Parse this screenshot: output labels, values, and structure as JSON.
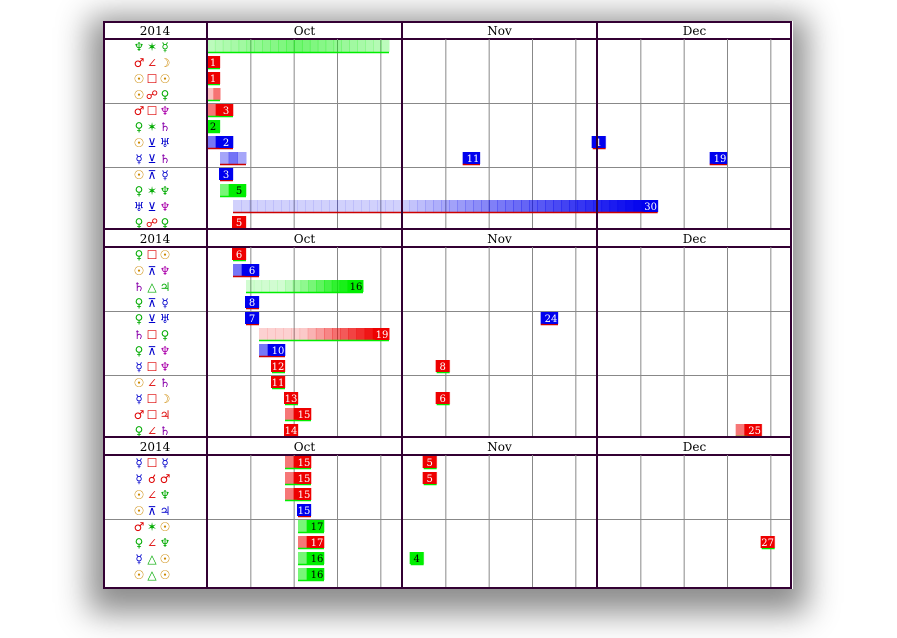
{
  "chart_data": {
    "type": "table",
    "months": [
      "Oct",
      "Nov",
      "Dec"
    ],
    "sections": [
      {
        "year": "2014",
        "rows": [
          {
            "glyphs": [
              {
                "g": "♆",
                "c": "#00aa00"
              },
              {
                "g": "✶",
                "c": "#00aa00"
              },
              {
                "g": "☿",
                "c": "#00aa00"
              }
            ],
            "events": [
              {
                "start": 0,
                "end": 42,
                "color": "green",
                "label": ""
              }
            ]
          },
          {
            "glyphs": [
              {
                "g": "♂",
                "c": "#dd0000"
              },
              {
                "g": "∠",
                "c": "#dd0000"
              },
              {
                "g": "☽",
                "c": "#cc8800"
              }
            ],
            "events": [
              {
                "start": 0,
                "end": 3,
                "color": "red",
                "label": "1"
              }
            ]
          },
          {
            "glyphs": [
              {
                "g": "☉",
                "c": "#cc8800"
              },
              {
                "g": "☐",
                "c": "#dd0000"
              },
              {
                "g": "☉",
                "c": "#cc8800"
              }
            ],
            "events": [
              {
                "start": 0,
                "end": 3,
                "color": "red",
                "label": "1"
              }
            ]
          },
          {
            "glyphs": [
              {
                "g": "☉",
                "c": "#cc8800"
              },
              {
                "g": "☍",
                "c": "#dd0000"
              },
              {
                "g": "♀",
                "c": "#00aa00"
              }
            ],
            "events": [
              {
                "start": 0,
                "end": 3,
                "color": "red",
                "label": ""
              }
            ]
          },
          {
            "glyphs": [
              {
                "g": "♂",
                "c": "#dd0000"
              },
              {
                "g": "☐",
                "c": "#dd0000"
              },
              {
                "g": "♆",
                "c": "#aa00aa"
              }
            ],
            "events": [
              {
                "start": 0,
                "end": 6,
                "color": "red",
                "label": "3"
              }
            ]
          },
          {
            "glyphs": [
              {
                "g": "♀",
                "c": "#00aa00"
              },
              {
                "g": "✶",
                "c": "#00aa00"
              },
              {
                "g": "♄",
                "c": "#8800aa"
              }
            ],
            "events": [
              {
                "start": 0,
                "end": 3,
                "color": "green",
                "label": "2"
              }
            ]
          },
          {
            "glyphs": [
              {
                "g": "☉",
                "c": "#cc8800"
              },
              {
                "g": "⊻",
                "c": "#0000cc"
              },
              {
                "g": "♅",
                "c": "#0000cc"
              }
            ],
            "events": [
              {
                "start": 0,
                "end": 6,
                "color": "blue",
                "label": "2"
              },
              {
                "start": 89,
                "end": 92,
                "color": "blue",
                "label": "1"
              }
            ]
          },
          {
            "glyphs": [
              {
                "g": "☿",
                "c": "#0000cc"
              },
              {
                "g": "⊻",
                "c": "#0000cc"
              },
              {
                "g": "♄",
                "c": "#8800aa"
              }
            ],
            "events": [
              {
                "start": 3,
                "end": 9,
                "color": "blue",
                "label": ""
              },
              {
                "start": 59,
                "end": 63,
                "color": "blue",
                "label": "11"
              },
              {
                "start": 116,
                "end": 120,
                "color": "blue",
                "label": "19"
              }
            ]
          },
          {
            "glyphs": [
              {
                "g": "☉",
                "c": "#cc8800"
              },
              {
                "g": "⊼",
                "c": "#0000cc"
              },
              {
                "g": "☿",
                "c": "#0000cc"
              }
            ],
            "events": [
              {
                "start": 3,
                "end": 6,
                "color": "blue",
                "label": "3"
              }
            ]
          },
          {
            "glyphs": [
              {
                "g": "♀",
                "c": "#00aa00"
              },
              {
                "g": "✶",
                "c": "#00aa00"
              },
              {
                "g": "♆",
                "c": "#00aa00"
              }
            ],
            "events": [
              {
                "start": 3,
                "end": 9,
                "color": "green",
                "label": "5"
              }
            ]
          },
          {
            "glyphs": [
              {
                "g": "♅",
                "c": "#0000cc"
              },
              {
                "g": "⊻",
                "c": "#0000cc"
              },
              {
                "g": "♆",
                "c": "#aa00aa"
              }
            ],
            "events": [
              {
                "start": 6,
                "end": 104,
                "color": "blue",
                "label": "30"
              }
            ]
          },
          {
            "glyphs": [
              {
                "g": "♀",
                "c": "#00aa00"
              },
              {
                "g": "☍",
                "c": "#dd0000"
              },
              {
                "g": "♀",
                "c": "#00aa00"
              }
            ],
            "events": [
              {
                "start": 6,
                "end": 9,
                "color": "red",
                "label": "5"
              }
            ]
          }
        ]
      },
      {
        "year": "2014",
        "rows": [
          {
            "glyphs": [
              {
                "g": "♀",
                "c": "#00aa00"
              },
              {
                "g": "☐",
                "c": "#dd0000"
              },
              {
                "g": "☉",
                "c": "#cc8800"
              }
            ],
            "events": [
              {
                "start": 6,
                "end": 9,
                "color": "red",
                "label": "6"
              }
            ]
          },
          {
            "glyphs": [
              {
                "g": "☉",
                "c": "#cc8800"
              },
              {
                "g": "⊼",
                "c": "#0000cc"
              },
              {
                "g": "♆",
                "c": "#aa00aa"
              }
            ],
            "events": [
              {
                "start": 6,
                "end": 12,
                "color": "blue",
                "label": "6"
              }
            ]
          },
          {
            "glyphs": [
              {
                "g": "♄",
                "c": "#8800aa"
              },
              {
                "g": "△",
                "c": "#00aa00"
              },
              {
                "g": "♃",
                "c": "#00aa00"
              }
            ],
            "events": [
              {
                "start": 9,
                "end": 36,
                "color": "green",
                "label": "16"
              }
            ]
          },
          {
            "glyphs": [
              {
                "g": "♀",
                "c": "#00aa00"
              },
              {
                "g": "⊼",
                "c": "#0000cc"
              },
              {
                "g": "☿",
                "c": "#0000cc"
              }
            ],
            "events": [
              {
                "start": 9,
                "end": 12,
                "color": "blue",
                "label": "8"
              }
            ]
          },
          {
            "glyphs": [
              {
                "g": "♀",
                "c": "#00aa00"
              },
              {
                "g": "⊻",
                "c": "#0000cc"
              },
              {
                "g": "♅",
                "c": "#0000cc"
              }
            ],
            "events": [
              {
                "start": 9,
                "end": 12,
                "color": "blue",
                "label": "7"
              },
              {
                "start": 77,
                "end": 81,
                "color": "blue",
                "label": "24"
              }
            ]
          },
          {
            "glyphs": [
              {
                "g": "♄",
                "c": "#8800aa"
              },
              {
                "g": "☐",
                "c": "#dd0000"
              },
              {
                "g": "♀",
                "c": "#00aa00"
              }
            ],
            "events": [
              {
                "start": 12,
                "end": 42,
                "color": "red",
                "label": "19"
              }
            ]
          },
          {
            "glyphs": [
              {
                "g": "♀",
                "c": "#00aa00"
              },
              {
                "g": "⊼",
                "c": "#0000cc"
              },
              {
                "g": "♆",
                "c": "#aa00aa"
              }
            ],
            "events": [
              {
                "start": 12,
                "end": 18,
                "color": "blue",
                "label": "10"
              }
            ]
          },
          {
            "glyphs": [
              {
                "g": "☿",
                "c": "#0000cc"
              },
              {
                "g": "☐",
                "c": "#dd0000"
              },
              {
                "g": "♆",
                "c": "#aa00aa"
              }
            ],
            "events": [
              {
                "start": 15,
                "end": 18,
                "color": "red",
                "label": "12"
              },
              {
                "start": 53,
                "end": 56,
                "color": "red",
                "label": "8"
              }
            ]
          },
          {
            "glyphs": [
              {
                "g": "☉",
                "c": "#cc8800"
              },
              {
                "g": "∠",
                "c": "#dd0000"
              },
              {
                "g": "♄",
                "c": "#8800aa"
              }
            ],
            "events": [
              {
                "start": 15,
                "end": 18,
                "color": "red",
                "label": "11"
              }
            ]
          },
          {
            "glyphs": [
              {
                "g": "☿",
                "c": "#0000cc"
              },
              {
                "g": "☐",
                "c": "#dd0000"
              },
              {
                "g": "☽",
                "c": "#cc8800"
              }
            ],
            "events": [
              {
                "start": 18,
                "end": 21,
                "color": "red",
                "label": "13"
              },
              {
                "start": 53,
                "end": 56,
                "color": "red",
                "label": "6"
              }
            ]
          },
          {
            "glyphs": [
              {
                "g": "♂",
                "c": "#dd0000"
              },
              {
                "g": "☐",
                "c": "#dd0000"
              },
              {
                "g": "♃",
                "c": "#dd0000"
              }
            ],
            "events": [
              {
                "start": 18,
                "end": 24,
                "color": "red",
                "label": "15"
              }
            ]
          },
          {
            "glyphs": [
              {
                "g": "♀",
                "c": "#00aa00"
              },
              {
                "g": "∠",
                "c": "#dd0000"
              },
              {
                "g": "♄",
                "c": "#8800aa"
              }
            ],
            "events": [
              {
                "start": 18,
                "end": 21,
                "color": "red",
                "label": "14"
              },
              {
                "start": 122,
                "end": 128,
                "color": "red",
                "label": "25"
              }
            ]
          }
        ]
      },
      {
        "year": "2014",
        "rows": [
          {
            "glyphs": [
              {
                "g": "☿",
                "c": "#0000cc"
              },
              {
                "g": "☐",
                "c": "#dd0000"
              },
              {
                "g": "☿",
                "c": "#0000cc"
              }
            ],
            "events": [
              {
                "start": 18,
                "end": 24,
                "color": "red",
                "label": "15"
              },
              {
                "start": 50,
                "end": 53,
                "color": "red",
                "label": "5"
              }
            ]
          },
          {
            "glyphs": [
              {
                "g": "☿",
                "c": "#0000cc"
              },
              {
                "g": "☌",
                "c": "#dd0000"
              },
              {
                "g": "♂",
                "c": "#dd0000"
              }
            ],
            "events": [
              {
                "start": 18,
                "end": 24,
                "color": "red",
                "label": "15"
              },
              {
                "start": 50,
                "end": 53,
                "color": "red",
                "label": "5"
              }
            ]
          },
          {
            "glyphs": [
              {
                "g": "☉",
                "c": "#cc8800"
              },
              {
                "g": "∠",
                "c": "#dd0000"
              },
              {
                "g": "♆",
                "c": "#00aa00"
              }
            ],
            "events": [
              {
                "start": 18,
                "end": 24,
                "color": "red",
                "label": "15"
              }
            ]
          },
          {
            "glyphs": [
              {
                "g": "☉",
                "c": "#cc8800"
              },
              {
                "g": "⊼",
                "c": "#0000cc"
              },
              {
                "g": "♃",
                "c": "#0000cc"
              }
            ],
            "events": [
              {
                "start": 21,
                "end": 24,
                "color": "blue",
                "label": "15"
              }
            ]
          },
          {
            "glyphs": [
              {
                "g": "♂",
                "c": "#dd0000"
              },
              {
                "g": "✶",
                "c": "#00aa00"
              },
              {
                "g": "☉",
                "c": "#cc8800"
              }
            ],
            "events": [
              {
                "start": 21,
                "end": 27,
                "color": "green",
                "label": "17"
              }
            ]
          },
          {
            "glyphs": [
              {
                "g": "♀",
                "c": "#00aa00"
              },
              {
                "g": "∠",
                "c": "#dd0000"
              },
              {
                "g": "♆",
                "c": "#00aa00"
              }
            ],
            "events": [
              {
                "start": 21,
                "end": 27,
                "color": "red",
                "label": "17"
              },
              {
                "start": 128,
                "end": 131,
                "color": "red",
                "label": "27"
              }
            ]
          },
          {
            "glyphs": [
              {
                "g": "☿",
                "c": "#0000cc"
              },
              {
                "g": "△",
                "c": "#00aa00"
              },
              {
                "g": "☉",
                "c": "#cc8800"
              }
            ],
            "events": [
              {
                "start": 21,
                "end": 27,
                "color": "green",
                "label": "16"
              },
              {
                "start": 47,
                "end": 50,
                "color": "green",
                "label": "4"
              }
            ]
          },
          {
            "glyphs": [
              {
                "g": "☉",
                "c": "#cc8800"
              },
              {
                "g": "△",
                "c": "#00aa00"
              },
              {
                "g": "☉",
                "c": "#cc8800"
              }
            ],
            "events": [
              {
                "start": 21,
                "end": 27,
                "color": "green",
                "label": "16"
              }
            ]
          }
        ]
      }
    ],
    "colors": {
      "red": "#ee0000",
      "green": "#00ee00",
      "blue": "#0000ee",
      "frame": "#330033",
      "grid": "#888888"
    }
  }
}
